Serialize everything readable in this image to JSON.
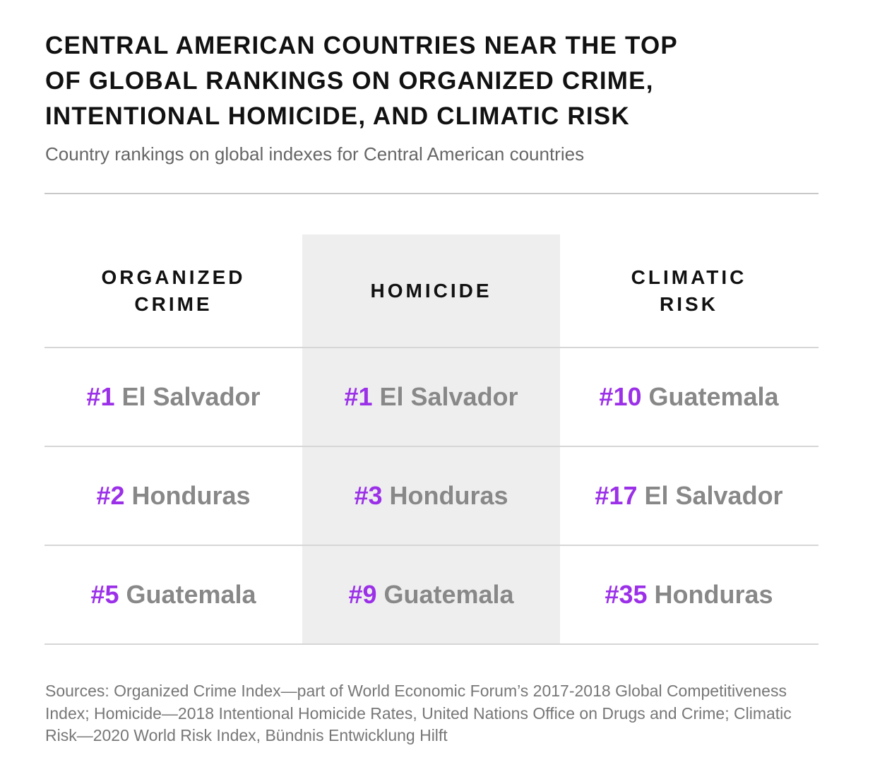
{
  "header": {
    "title_lines": [
      "CENTRAL AMERICAN COUNTRIES NEAR THE TOP",
      "OF GLOBAL RANKINGS ON ORGANIZED CRIME,",
      "INTENTIONAL HOMICIDE, AND CLIMATIC RISK"
    ],
    "subtitle": "Country rankings on global indexes for Central American countries"
  },
  "colors": {
    "rank": "#9b30e8",
    "country": "#888888",
    "highlight_column": "#eeeeee"
  },
  "chart_data": {
    "type": "table",
    "title": "CENTRAL AMERICAN COUNTRIES NEAR THE TOP OF GLOBAL RANKINGS ON ORGANIZED CRIME, INTENTIONAL HOMICIDE, AND CLIMATIC RISK",
    "subtitle": "Country rankings on global indexes for Central American countries",
    "highlighted_column": 1,
    "columns": [
      {
        "header_lines": [
          "ORGANIZED",
          "CRIME"
        ],
        "rows": [
          {
            "rank": "#1",
            "country": "El Salvador"
          },
          {
            "rank": "#2",
            "country": "Honduras"
          },
          {
            "rank": "#5",
            "country": "Guatemala"
          }
        ]
      },
      {
        "header_lines": [
          "HOMICIDE"
        ],
        "rows": [
          {
            "rank": "#1",
            "country": "El Salvador"
          },
          {
            "rank": "#3",
            "country": "Honduras"
          },
          {
            "rank": "#9",
            "country": "Guatemala"
          }
        ]
      },
      {
        "header_lines": [
          "CLIMATIC",
          "RISK"
        ],
        "rows": [
          {
            "rank": "#10",
            "country": "Guatemala"
          },
          {
            "rank": "#17",
            "country": "El Salvador"
          },
          {
            "rank": "#35",
            "country": "Honduras"
          }
        ]
      }
    ]
  },
  "footer": {
    "sources": "Sources:  Organized Crime Index—part of World Economic Forum’s 2017-2018 Global Competitiveness Index; Homicide—2018 Intentional Homicide Rates, United Nations Office on Drugs and Crime; Climatic Risk—2020 World Risk Index, Bündnis Entwicklung Hilft"
  }
}
